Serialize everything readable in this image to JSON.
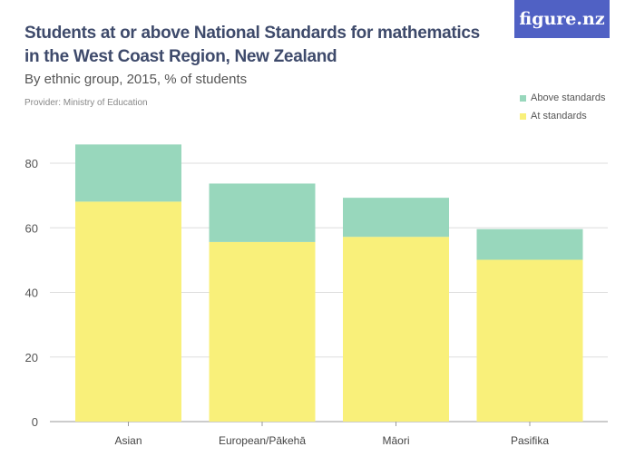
{
  "header": {
    "title": "Students at or above National Standards for mathematics in the West Coast Region, New Zealand",
    "subtitle": "By ethnic group, 2015, % of students",
    "provider": "Provider: Ministry of Education",
    "logo": "figure.nz"
  },
  "colors": {
    "above": "#98d7bc",
    "at": "#f9f07a",
    "logo_bg": "#5061c4"
  },
  "chart_data": {
    "type": "bar",
    "stacked": true,
    "title": "Students at or above National Standards for mathematics in the West Coast Region, New Zealand",
    "subtitle": "By ethnic group, 2015, % of students",
    "categories": [
      "Asian",
      "European/Pākehā",
      "Māori",
      "Pasifika"
    ],
    "series": [
      {
        "name": "At standards",
        "values": [
          68.1,
          55.6,
          57.2,
          50.1
        ]
      },
      {
        "name": "Above standards",
        "values": [
          17.7,
          18.1,
          12.1,
          9.5
        ]
      }
    ],
    "legend": [
      "Above standards",
      "At standards"
    ],
    "legend_placement": "top-right",
    "yticks": [
      "0",
      "20",
      "40",
      "60",
      "80"
    ],
    "ylim": [
      0,
      80
    ],
    "grid": true,
    "xlabel": "",
    "ylabel": ""
  }
}
